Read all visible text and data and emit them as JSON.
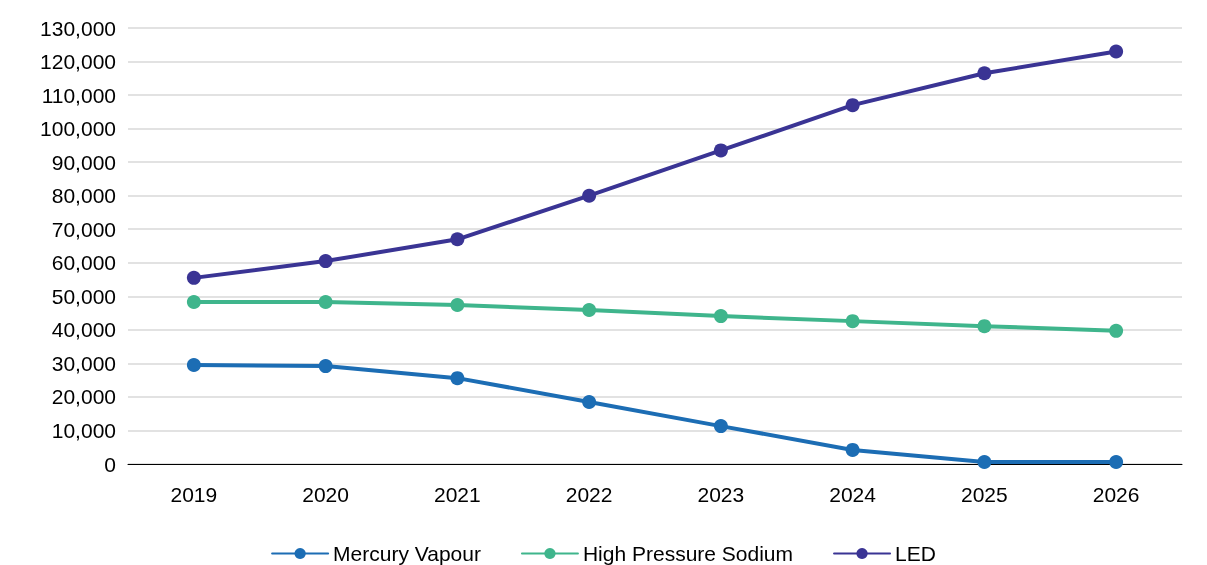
{
  "chart_data": {
    "type": "line",
    "categories": [
      "2019",
      "2020",
      "2021",
      "2022",
      "2023",
      "2024",
      "2025",
      "2026"
    ],
    "series": [
      {
        "name": "Mercury Vapour",
        "color": "#1c6db4",
        "values": [
          29500,
          29200,
          25600,
          18500,
          11300,
          4200,
          600,
          600
        ]
      },
      {
        "name": "High Pressure Sodium",
        "color": "#3fb58c",
        "values": [
          48300,
          48300,
          47400,
          45900,
          44100,
          42600,
          41100,
          39700
        ]
      },
      {
        "name": "LED",
        "color": "#3a3494",
        "values": [
          55500,
          60500,
          67000,
          80000,
          93500,
          107000,
          116500,
          123000
        ]
      }
    ],
    "ylim": [
      0,
      130000
    ],
    "yticks": [
      0,
      {
        "value": 10000,
        "label": "10,000"
      },
      {
        "value": 20000,
        "label": "20,000"
      },
      {
        "value": 30000,
        "label": "30,000"
      },
      {
        "value": 40000,
        "label": "40,000"
      },
      {
        "value": 50000,
        "label": "50,000"
      },
      {
        "value": 60000,
        "label": "60,000"
      },
      {
        "value": 70000,
        "label": "70,000"
      },
      {
        "value": 80000,
        "label": "80,000"
      },
      {
        "value": 90000,
        "label": "90,000"
      },
      {
        "value": 100000,
        "label": "100,000"
      },
      {
        "value": 110000,
        "label": "110,000"
      },
      {
        "value": 120000,
        "label": "120,000"
      },
      {
        "value": 130000,
        "label": "130,000"
      }
    ],
    "grid": "y",
    "legend": "bottom",
    "marker": "circle",
    "line_style": "solid"
  }
}
